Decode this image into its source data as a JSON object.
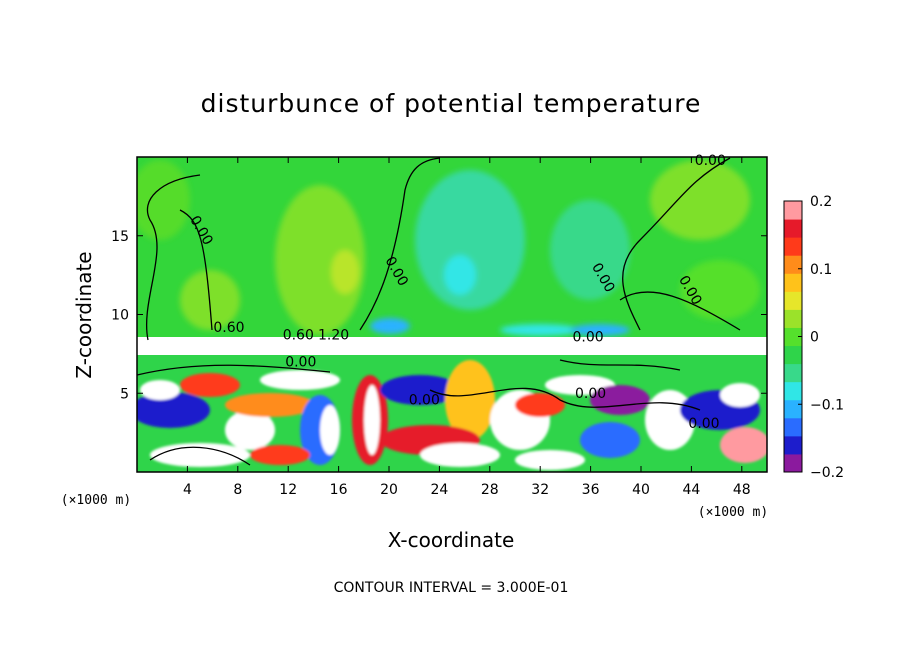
{
  "chart_data": {
    "type": "heatmap",
    "title": "disturbunce of potential temperature",
    "xlabel": "X-coordinate",
    "ylabel": "Z-coordinate",
    "x_unit": "(×1000 m)",
    "z_unit": "(×1000 m)",
    "xlim": [
      0,
      50
    ],
    "ylim": [
      0,
      20
    ],
    "x_ticks": [
      4,
      8,
      12,
      16,
      20,
      24,
      28,
      32,
      36,
      40,
      44,
      48
    ],
    "y_ticks": [
      5,
      10,
      15
    ],
    "colorbar": {
      "range": [
        -0.2,
        0.2
      ],
      "tick_values": [
        0.2,
        0.1,
        0,
        -0.1,
        -0.2
      ],
      "tick_labels": [
        "0.2",
        "0.1",
        "0",
        "−0.1",
        "−0.2"
      ],
      "colors": [
        "#8b1a9e",
        "#1d1dcc",
        "#2a6cff",
        "#2ab2ff",
        "#30e6e6",
        "#38d98a",
        "#2fd44a",
        "#55e02c",
        "#9be22a",
        "#e6e62a",
        "#ffc21a",
        "#ff8c1a",
        "#ff3a1a",
        "#e61a2a",
        "#ff9aa0"
      ]
    },
    "contour_labels": [
      {
        "text": "0.00",
        "x": 45.5,
        "z": 19.5
      },
      {
        "text": "0.00",
        "x": 4.8,
        "z": 15.2
      },
      {
        "text": "0.00",
        "x": 20.3,
        "z": 12.6
      },
      {
        "text": "0.00",
        "x": 36.7,
        "z": 12.2
      },
      {
        "text": "0.00",
        "x": 43.6,
        "z": 11.4
      },
      {
        "text": "0.00",
        "x": 35.8,
        "z": 8.3
      },
      {
        "text": "0.00",
        "x": 13.0,
        "z": 6.7
      },
      {
        "text": "0.00",
        "x": 22.8,
        "z": 4.3
      },
      {
        "text": "0.00",
        "x": 36.0,
        "z": 4.7
      },
      {
        "text": "0.00",
        "x": 45.0,
        "z": 2.8
      },
      {
        "text": "0.60",
        "x": 7.3,
        "z": 8.9
      },
      {
        "text": "0.60",
        "x": 12.8,
        "z": 8.4
      },
      {
        "text": "1.20",
        "x": 15.6,
        "z": 8.4
      }
    ],
    "contour_interval_label": "CONTOUR INTERVAL = 3.000E-01"
  }
}
